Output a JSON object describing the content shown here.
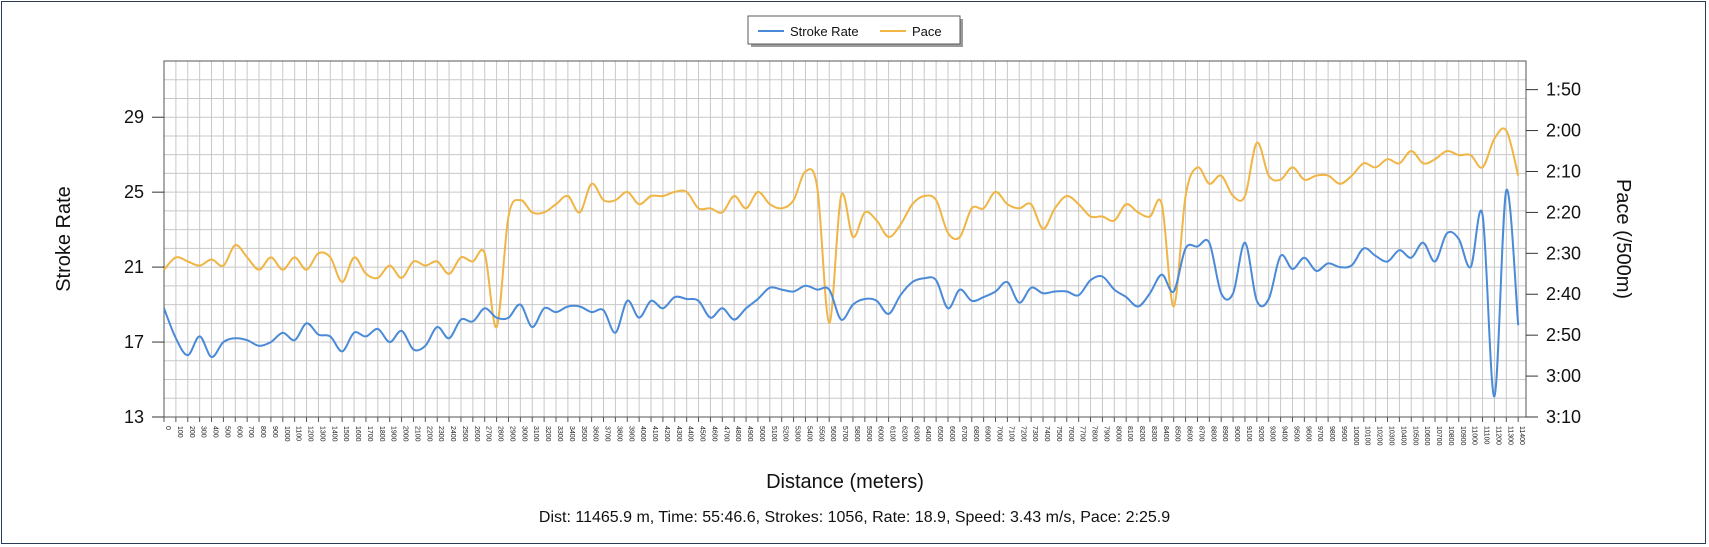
{
  "colors": {
    "stroke_rate": "#4a8ad8",
    "pace": "#f0b544",
    "grid": "#c8c8c8",
    "frame": "#2b3a55"
  },
  "summary": "Dist: 11465.9 m, Time: 55:46.6, Strokes: 1056, Rate: 18.9, Speed: 3.43 m/s, Pace: 2:25.9",
  "chart_data": {
    "type": "line",
    "title": "",
    "xlabel": "Distance (meters)",
    "ylabel": "Stroke Rate",
    "y2label": "Pace (/500m)",
    "xlim": [
      0,
      11465.9
    ],
    "ylim": [
      13,
      32
    ],
    "y2lim": [
      "3:10",
      "1:43"
    ],
    "x_ticks_step": 100,
    "x_tick_max": 11400,
    "y_ticks": [
      "13",
      "17",
      "21",
      "25",
      "29"
    ],
    "y2_ticks": [
      "1:50",
      "2:00",
      "2:10",
      "2:20",
      "2:30",
      "2:40",
      "2:50",
      "3:00",
      "3:10"
    ],
    "grid": true,
    "legend": {
      "position": "top-center",
      "entries": [
        "Stroke Rate",
        "Pace"
      ]
    },
    "series": [
      {
        "name": "Stroke Rate",
        "axis": "left",
        "x": [
          0,
          100,
          200,
          300,
          400,
          500,
          600,
          700,
          800,
          900,
          1000,
          1100,
          1200,
          1300,
          1400,
          1500,
          1600,
          1700,
          1800,
          1900,
          2000,
          2100,
          2200,
          2300,
          2400,
          2500,
          2600,
          2700,
          2800,
          2900,
          3000,
          3100,
          3200,
          3300,
          3400,
          3500,
          3600,
          3700,
          3800,
          3900,
          4000,
          4100,
          4200,
          4300,
          4400,
          4500,
          4600,
          4700,
          4800,
          4900,
          5000,
          5100,
          5200,
          5300,
          5400,
          5500,
          5600,
          5700,
          5800,
          5900,
          6000,
          6100,
          6200,
          6300,
          6400,
          6500,
          6600,
          6700,
          6800,
          6900,
          7000,
          7100,
          7200,
          7300,
          7400,
          7500,
          7600,
          7700,
          7800,
          7900,
          8000,
          8100,
          8200,
          8300,
          8400,
          8500,
          8600,
          8700,
          8800,
          8900,
          9000,
          9100,
          9200,
          9300,
          9400,
          9500,
          9600,
          9700,
          9800,
          9900,
          10000,
          10100,
          10200,
          10300,
          10400,
          10500,
          10600,
          10700,
          10800,
          10900,
          11000,
          11100,
          11200,
          11300,
          11400
        ],
        "values": [
          18.8,
          17.2,
          16.3,
          17.3,
          16.2,
          17.0,
          17.2,
          17.1,
          16.8,
          17.0,
          17.5,
          17.1,
          18.0,
          17.4,
          17.3,
          16.5,
          17.5,
          17.3,
          17.7,
          17.0,
          17.6,
          16.6,
          16.8,
          17.8,
          17.2,
          18.2,
          18.1,
          18.8,
          18.3,
          18.3,
          19.0,
          17.8,
          18.8,
          18.6,
          18.9,
          18.9,
          18.6,
          18.7,
          17.5,
          19.2,
          18.3,
          19.2,
          18.8,
          19.4,
          19.3,
          19.2,
          18.3,
          18.8,
          18.2,
          18.8,
          19.3,
          19.9,
          19.8,
          19.7,
          20.0,
          19.8,
          19.8,
          18.2,
          19.0,
          19.3,
          19.2,
          18.5,
          19.5,
          20.2,
          20.4,
          20.3,
          18.8,
          19.8,
          19.2,
          19.4,
          19.7,
          20.2,
          19.1,
          19.9,
          19.6,
          19.7,
          19.7,
          19.5,
          20.3,
          20.5,
          19.8,
          19.4,
          18.9,
          19.6,
          20.6,
          19.7,
          22.0,
          22.1,
          22.3,
          19.6,
          19.6,
          22.3,
          19.2,
          19.3,
          21.6,
          20.9,
          21.5,
          20.8,
          21.2,
          21.0,
          21.1,
          22.0,
          21.6,
          21.3,
          21.9,
          21.5,
          22.3,
          21.3,
          22.8,
          22.5,
          21.0,
          23.8,
          14.1,
          25.1,
          17.9
        ]
      },
      {
        "name": "Pace",
        "axis": "right",
        "x": [
          0,
          100,
          200,
          300,
          400,
          500,
          600,
          700,
          800,
          900,
          1000,
          1100,
          1200,
          1300,
          1400,
          1500,
          1600,
          1700,
          1800,
          1900,
          2000,
          2100,
          2200,
          2300,
          2400,
          2500,
          2600,
          2700,
          2800,
          2900,
          3000,
          3100,
          3200,
          3300,
          3400,
          3500,
          3600,
          3700,
          3800,
          3900,
          4000,
          4100,
          4200,
          4300,
          4400,
          4500,
          4600,
          4700,
          4800,
          4900,
          5000,
          5100,
          5200,
          5300,
          5400,
          5500,
          5600,
          5700,
          5800,
          5900,
          6000,
          6100,
          6200,
          6300,
          6400,
          6500,
          6600,
          6700,
          6800,
          6900,
          7000,
          7100,
          7200,
          7300,
          7400,
          7500,
          7600,
          7700,
          7800,
          7900,
          8000,
          8100,
          8200,
          8300,
          8400,
          8500,
          8600,
          8700,
          8800,
          8900,
          9000,
          9100,
          9200,
          9300,
          9400,
          9500,
          9600,
          9700,
          9800,
          9900,
          10000,
          10100,
          10200,
          10300,
          10400,
          10500,
          10600,
          10700,
          10800,
          10900,
          11000,
          11100,
          11200,
          11300,
          11400
        ],
        "values": [
          154.0,
          151.0,
          152.0,
          153.0,
          151.5,
          153.0,
          148.0,
          151.0,
          154.0,
          151.0,
          154.0,
          151.0,
          154.0,
          150.0,
          151.0,
          157.0,
          151.0,
          155.0,
          156.0,
          153.0,
          156.0,
          152.0,
          153.0,
          152.0,
          155.0,
          151.0,
          152.0,
          150.0,
          168.0,
          141.0,
          137.0,
          140.0,
          140.0,
          138.0,
          136.0,
          140.0,
          133.0,
          137.0,
          137.0,
          135.0,
          138.0,
          136.0,
          136.0,
          135.0,
          135.0,
          139.0,
          139.0,
          140.0,
          136.0,
          139.0,
          135.0,
          138.0,
          139.0,
          137.0,
          130.0,
          134.0,
          167.0,
          136.0,
          146.0,
          140.0,
          142.0,
          146.0,
          143.0,
          138.0,
          136.0,
          137.0,
          145.0,
          146.0,
          139.0,
          139.0,
          135.0,
          138.0,
          139.0,
          138.0,
          144.0,
          139.0,
          136.0,
          138.0,
          141.0,
          141.0,
          142.0,
          138.0,
          140.0,
          141.0,
          138.0,
          163.0,
          136.0,
          129.0,
          133.0,
          131.0,
          136.0,
          136.0,
          123.0,
          131.0,
          132.0,
          129.0,
          132.0,
          131.0,
          131.0,
          133.0,
          131.0,
          128.0,
          129.0,
          127.0,
          128.0,
          125.0,
          128.0,
          127.0,
          125.0,
          126.0,
          126.0,
          129.0,
          122.0,
          120.0,
          131.0
        ]
      }
    ]
  }
}
